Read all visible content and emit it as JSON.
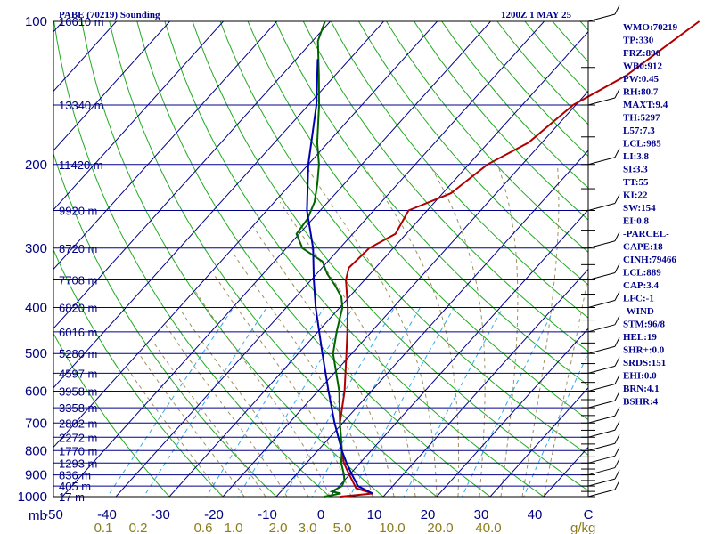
{
  "header": {
    "title": "PABE (70219) Sounding",
    "time": "1200Z  1 MAY 25"
  },
  "axis": {
    "mb_label": "mb",
    "gkg_label": "g/kg",
    "pressure_ticks": [
      "100",
      "200",
      "300",
      "400",
      "500",
      "600",
      "700",
      "800",
      "900",
      "1000"
    ],
    "temperature_ticks": [
      "-50",
      "-40",
      "-30",
      "-20",
      "-10",
      "0",
      "10",
      "20",
      "30",
      "40",
      "C"
    ],
    "mixing_ratio_ticks": [
      "0.1",
      "0.2",
      "0.6",
      "1.0",
      "2.0",
      "3.0",
      "5.0",
      "10.0",
      "20.0",
      "40.0"
    ]
  },
  "chart_data": {
    "type": "line",
    "title": "PABE (70219) Sounding",
    "xlabel": "C",
    "ylabel": "mb",
    "x_range": [
      -50,
      50
    ],
    "y_range": [
      1000,
      100
    ],
    "grid": true,
    "heights": [
      {
        "p": 100,
        "label": "16610 m"
      },
      {
        "p": 150,
        "label": "13340 m"
      },
      {
        "p": 200,
        "label": "11420 m"
      },
      {
        "p": 250,
        "label": "9920 m"
      },
      {
        "p": 300,
        "label": "8720 m"
      },
      {
        "p": 350,
        "label": "7708 m"
      },
      {
        "p": 400,
        "label": "6820 m"
      },
      {
        "p": 450,
        "label": "6016 m"
      },
      {
        "p": 500,
        "label": "5280 m"
      },
      {
        "p": 550,
        "label": "4597 m"
      },
      {
        "p": 600,
        "label": "3958 m"
      },
      {
        "p": 650,
        "label": "3358 m"
      },
      {
        "p": 700,
        "label": "2802 m"
      },
      {
        "p": 750,
        "label": "2272 m"
      },
      {
        "p": 800,
        "label": "1770 m"
      },
      {
        "p": 850,
        "label": "1293 m"
      },
      {
        "p": 900,
        "label": "836 m"
      },
      {
        "p": 950,
        "label": "405 m"
      },
      {
        "p": 1000,
        "label": "17 m"
      }
    ],
    "series": [
      {
        "key": "temperature",
        "color": "#b00000",
        "points": [
          [
            1000,
            2.0
          ],
          [
            985,
            7.5
          ],
          [
            960,
            3.5
          ],
          [
            925,
            1.5
          ],
          [
            900,
            0.0
          ],
          [
            850,
            -3.0
          ],
          [
            800,
            -5.5
          ],
          [
            700,
            -10.5
          ],
          [
            600,
            -15.0
          ],
          [
            500,
            -21.0
          ],
          [
            450,
            -24.5
          ],
          [
            400,
            -28.5
          ],
          [
            350,
            -33.5
          ],
          [
            330,
            -35.0
          ],
          [
            300,
            -34.5
          ],
          [
            280,
            -32.0
          ],
          [
            250,
            -33.5
          ],
          [
            230,
            -28.5
          ],
          [
            200,
            -26.5
          ],
          [
            180,
            -22.5
          ],
          [
            150,
            -20.5
          ],
          [
            130,
            -15.5
          ],
          [
            100,
            -11.0
          ]
        ]
      },
      {
        "key": "dewpoint",
        "color": "#006400",
        "points": [
          [
            1000,
            -1.0
          ],
          [
            985,
            1.5
          ],
          [
            975,
            -0.5
          ],
          [
            950,
            0.5
          ],
          [
            925,
            0.0
          ],
          [
            900,
            -1.0
          ],
          [
            850,
            -3.5
          ],
          [
            800,
            -5.5
          ],
          [
            700,
            -10.5
          ],
          [
            600,
            -16.0
          ],
          [
            500,
            -23.5
          ],
          [
            450,
            -26.5
          ],
          [
            400,
            -29.5
          ],
          [
            380,
            -31.5
          ],
          [
            360,
            -34.5
          ],
          [
            340,
            -38.0
          ],
          [
            320,
            -41.0
          ],
          [
            300,
            -47.0
          ],
          [
            280,
            -50.5
          ],
          [
            260,
            -51.0
          ],
          [
            240,
            -52.5
          ],
          [
            220,
            -55.0
          ],
          [
            200,
            -58.0
          ],
          [
            180,
            -62.0
          ],
          [
            150,
            -68.0
          ],
          [
            130,
            -73.0
          ],
          [
            110,
            -79.0
          ],
          [
            100,
            -81.0
          ]
        ]
      },
      {
        "key": "parcel",
        "color": "#0000b0",
        "points": [
          [
            985,
            7.5
          ],
          [
            950,
            3.5
          ],
          [
            900,
            0.5
          ],
          [
            850,
            -2.5
          ],
          [
            800,
            -5.5
          ],
          [
            700,
            -11.5
          ],
          [
            600,
            -18.0
          ],
          [
            500,
            -25.5
          ],
          [
            400,
            -34.5
          ],
          [
            350,
            -39.5
          ],
          [
            300,
            -45.0
          ],
          [
            250,
            -52.5
          ],
          [
            200,
            -60.0
          ],
          [
            150,
            -68.5
          ],
          [
            120,
            -76.0
          ]
        ]
      }
    ]
  },
  "indices": [
    "WMO:70219",
    "TP:330",
    "FRZ:896",
    "WB0:912",
    "PW:0.45",
    "RH:80.7",
    "MAXT:9.4",
    "TH:5297",
    "L57:7.3",
    "LCL:985",
    "LI:3.8",
    "SI:3.3",
    "TT:55",
    "KI:22",
    "SW:154",
    "EI:0.8",
    "-PARCEL-",
    "CAPE:18",
    "CINH:79466",
    "LCL:889",
    "CAP:3.4",
    "LFC:-1",
    "-WIND-",
    "STM:96/8",
    "HEL:19",
    "SHR+:0.0",
    "SRDS:151",
    "EHI:0.0",
    "BRN:4.1",
    "BSHR:4"
  ],
  "colors": {
    "frame": "#000000",
    "isobar": "#00008b",
    "isotherm": "#00008b",
    "dry_adiabat": "#22aa22",
    "moist_adiabat": "#a09060",
    "mixing_ratio": "#33aaee"
  }
}
